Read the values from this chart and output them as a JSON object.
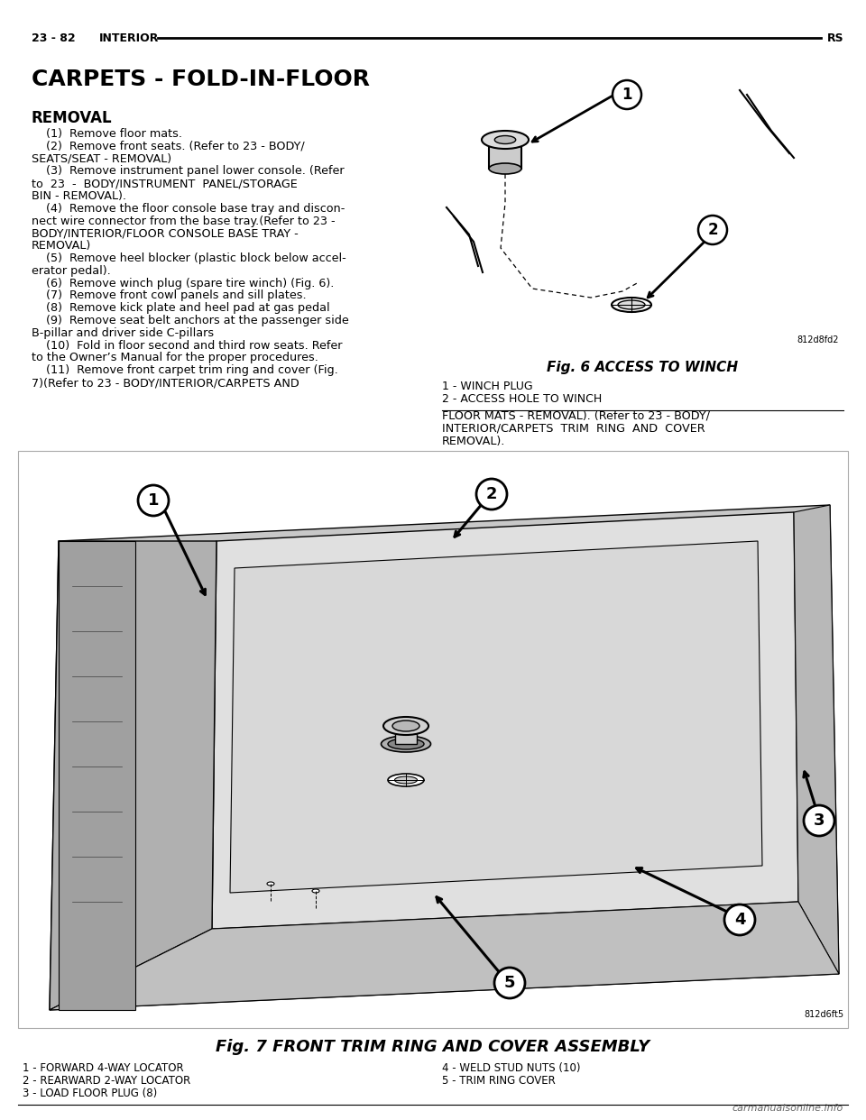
{
  "page_header_left": "23 - 82    INTERIOR",
  "page_header_right": "RS",
  "section_title": "CARPETS - FOLD-IN-FLOOR",
  "subsection_title": "REMOVAL",
  "body_lines": [
    "    (1)  Remove floor mats.",
    "    (2)  Remove front seats. (Refer to 23 - BODY/",
    "SEATS/SEAT - REMOVAL)",
    "    (3)  Remove instrument panel lower console. (Refer",
    "to  23  -  BODY/INSTRUMENT  PANEL/STORAGE",
    "BIN - REMOVAL).",
    "    (4)  Remove the floor console base tray and discon-",
    "nect wire connector from the base tray.(Refer to 23 -",
    "BODY/INTERIOR/FLOOR CONSOLE BASE TRAY -",
    "REMOVAL)",
    "    (5)  Remove heel blocker (plastic block below accel-",
    "erator pedal).",
    "    (6)  Remove winch plug (spare tire winch) (Fig. 6).",
    "    (7)  Remove front cowl panels and sill plates.",
    "    (8)  Remove kick plate and heel pad at gas pedal",
    "    (9)  Remove seat belt anchors at the passenger side",
    "B-pillar and driver side C-pillars",
    "    (10)  Fold in floor second and third row seats. Refer",
    "to the Owner’s Manual for the proper procedures.",
    "    (11)  Remove front carpet trim ring and cover (Fig.",
    "7)(Refer to 23 - BODY/INTERIOR/CARPETS AND"
  ],
  "right_col_lines": [
    "FLOOR MATS - REMOVAL). (Refer to 23 - BODY/",
    "INTERIOR/CARPETS  TRIM  RING  AND  COVER",
    "REMOVAL)."
  ],
  "fig6_caption": "Fig. 6 ACCESS TO WINCH",
  "fig6_code": "812d8fd2",
  "fig6_labels": [
    "1 - WINCH PLUG",
    "2 - ACCESS HOLE TO WINCH"
  ],
  "fig7_caption": "Fig. 7 FRONT TRIM RING AND COVER ASSEMBLY",
  "fig7_code": "812d6ft5",
  "fig7_labels_left": [
    "1 - FORWARD 4-WAY LOCATOR",
    "2 - REARWARD 2-WAY LOCATOR",
    "3 - LOAD FLOOR PLUG (8)"
  ],
  "fig7_labels_right": [
    "4 - WELD STUD NUTS (10)",
    "5 - TRIM RING COVER"
  ],
  "watermark": "carmanualsonline.info",
  "bg_color": "#ffffff",
  "text_color": "#000000"
}
